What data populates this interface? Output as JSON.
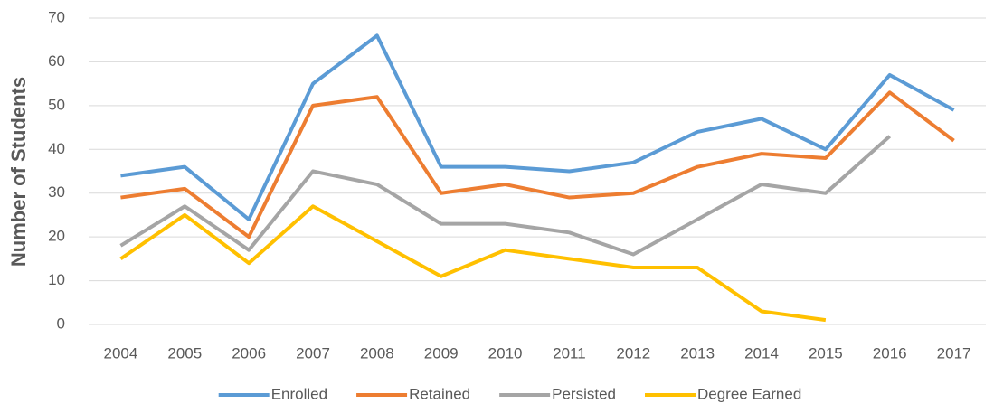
{
  "chart_data": {
    "type": "line",
    "y_label": "Number of Students",
    "categories": [
      "2004",
      "2005",
      "2006",
      "2007",
      "2008",
      "2009",
      "2010",
      "2011",
      "2012",
      "2013",
      "2014",
      "2015",
      "2016",
      "2017"
    ],
    "series": [
      {
        "name": "Enrolled",
        "color": "#5b9bd5",
        "values": [
          34,
          36,
          24,
          55,
          66,
          36,
          36,
          35,
          37,
          44,
          47,
          40,
          57,
          49
        ]
      },
      {
        "name": "Retained",
        "color": "#ed7d31",
        "values": [
          29,
          31,
          20,
          50,
          52,
          30,
          32,
          29,
          30,
          36,
          39,
          38,
          53,
          42
        ]
      },
      {
        "name": "Persisted",
        "color": "#a5a5a5",
        "values": [
          18,
          27,
          17,
          35,
          32,
          23,
          23,
          21,
          16,
          24,
          32,
          30,
          43,
          null
        ]
      },
      {
        "name": "Degree Earned",
        "color": "#ffc000",
        "values": [
          15,
          25,
          14,
          27,
          19,
          11,
          17,
          15,
          13,
          13,
          3,
          1,
          null,
          null
        ]
      }
    ],
    "ylim": [
      0,
      70
    ],
    "yticks": [
      0,
      10,
      20,
      30,
      40,
      50,
      60,
      70
    ],
    "grid": true,
    "legend": "bottom"
  }
}
